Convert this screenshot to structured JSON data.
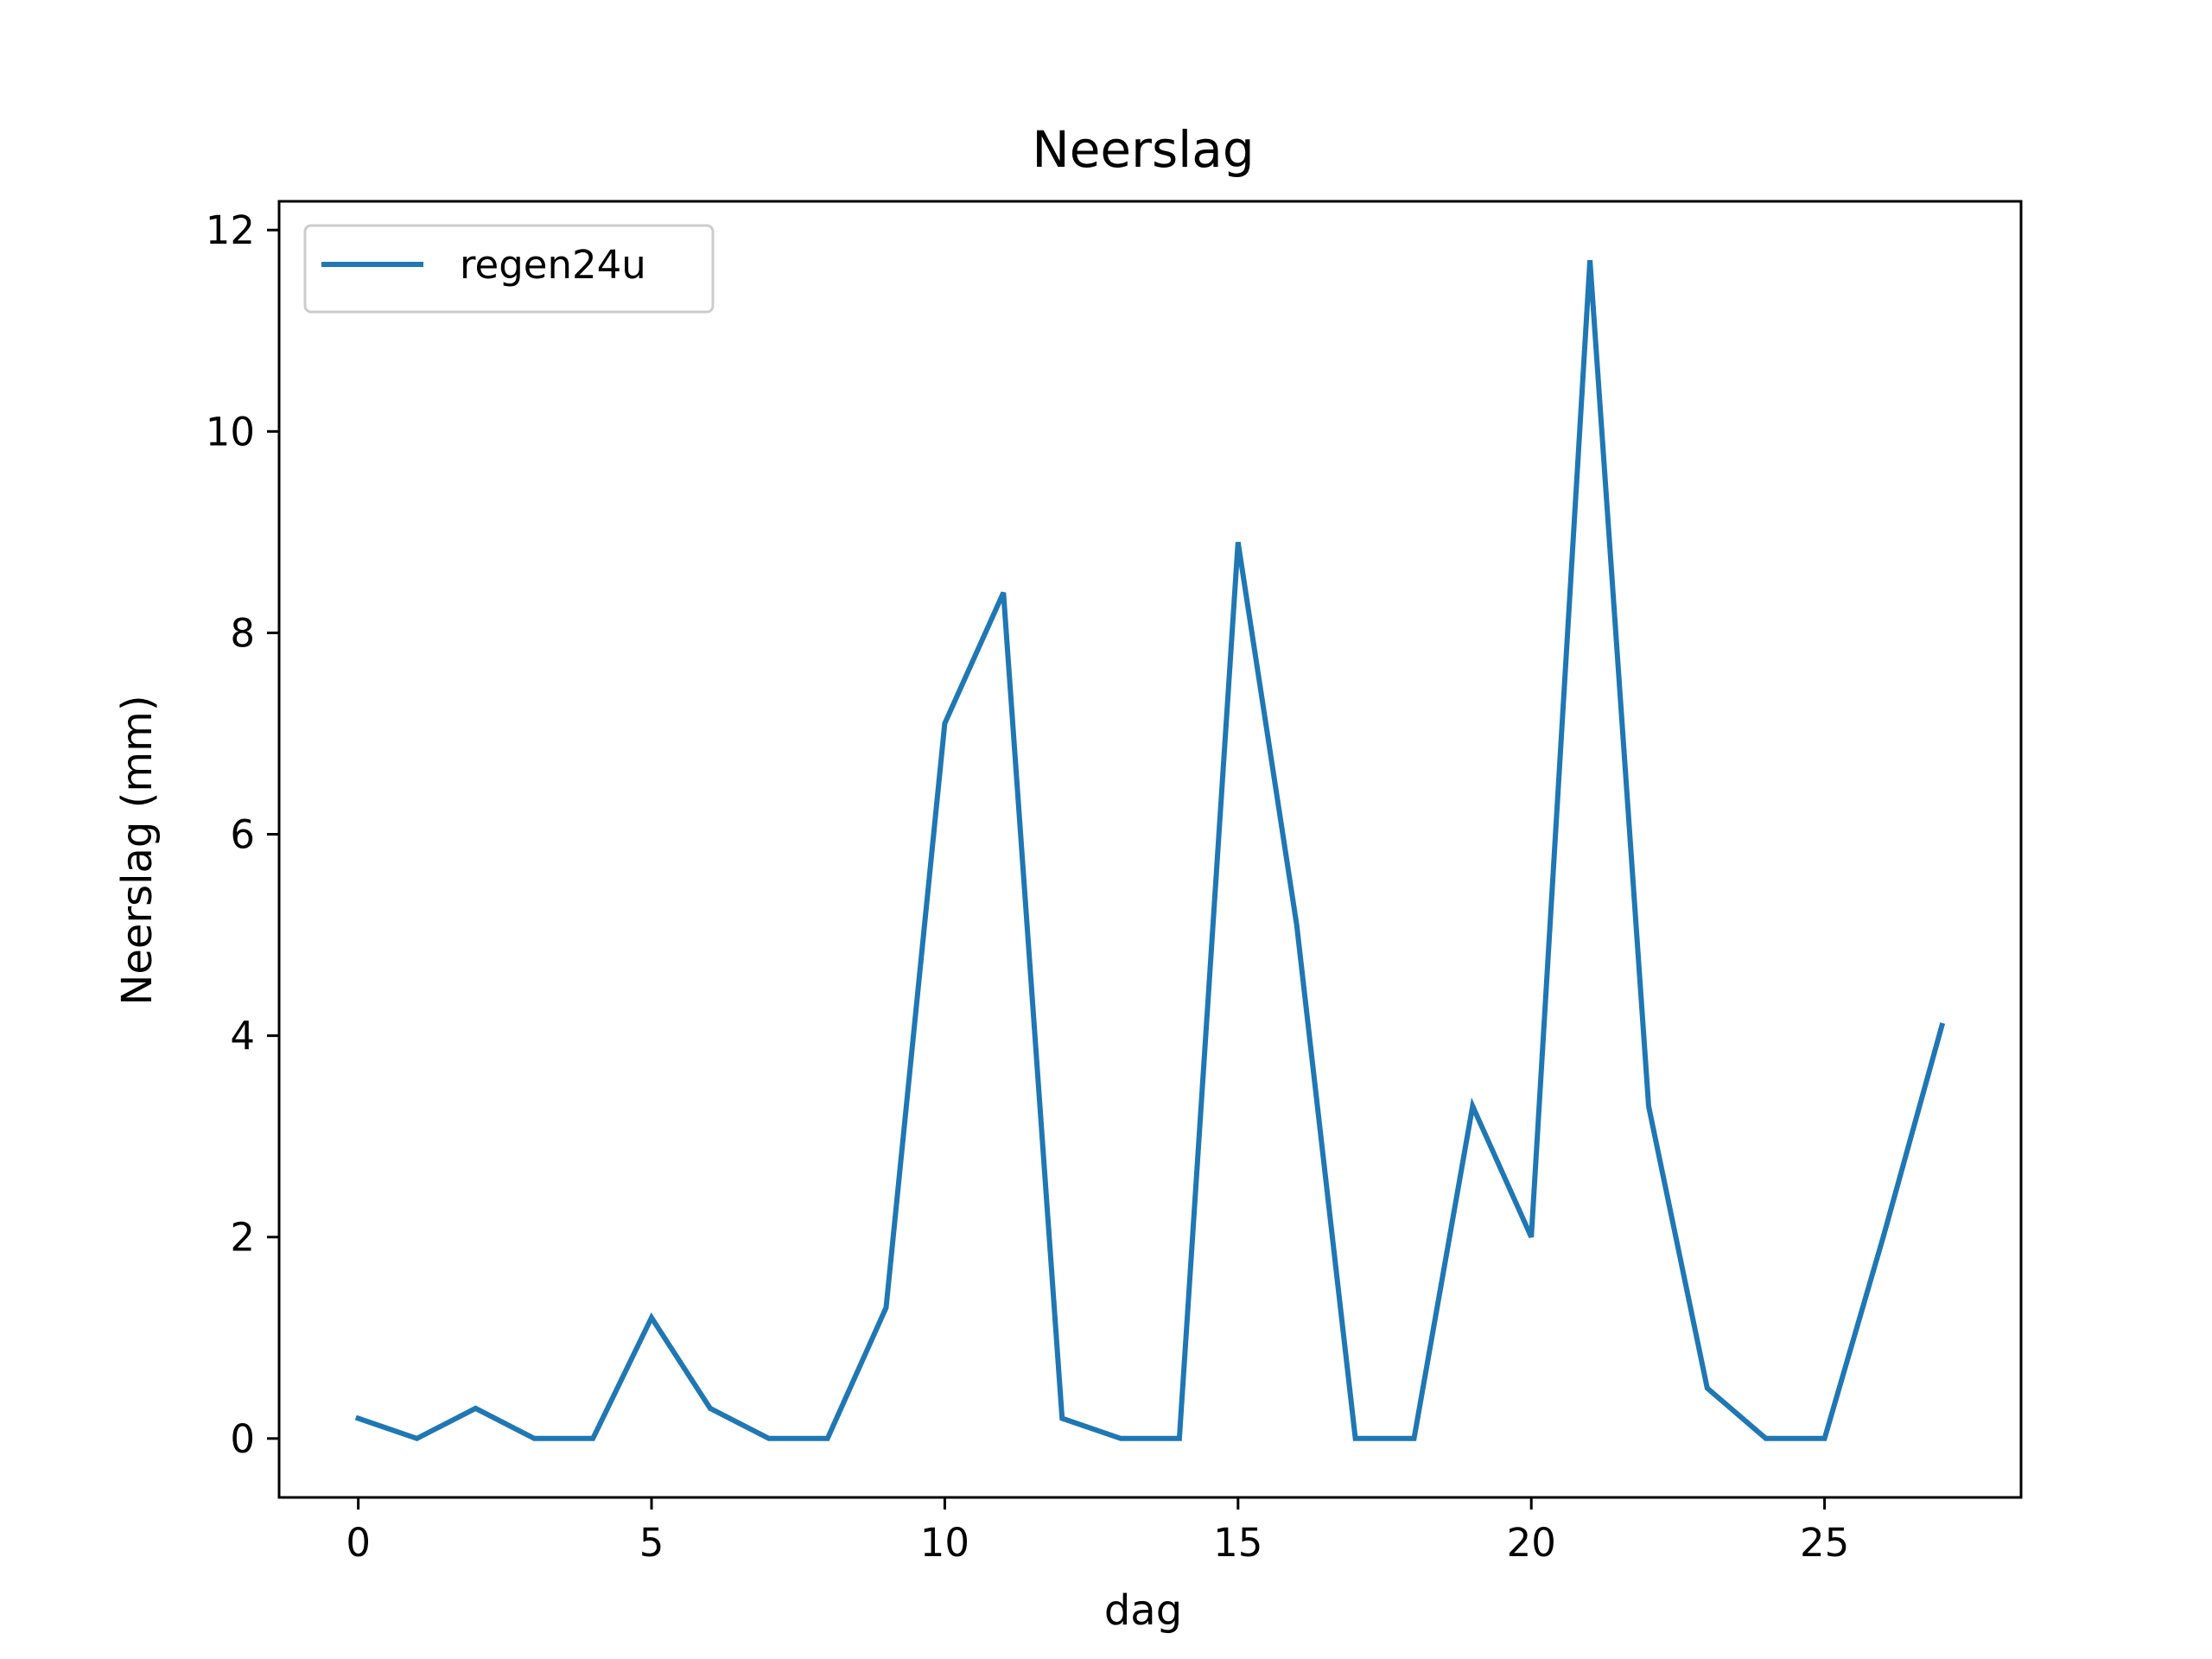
{
  "chart_data": {
    "type": "line",
    "title": "Neerslag",
    "xlabel": "dag",
    "ylabel": "Neerslag (mm)",
    "xlim": [
      -1.35,
      28.35
    ],
    "ylim": [
      -0.585,
      12.285
    ],
    "xticks": [
      0,
      5,
      10,
      15,
      20,
      25
    ],
    "yticks": [
      0,
      2,
      4,
      6,
      8,
      10,
      12
    ],
    "grid": false,
    "legend_position": "top-left",
    "series": [
      {
        "name": "regen24u",
        "color": "#1f77b4",
        "x": [
          0,
          1,
          2,
          3,
          4,
          5,
          6,
          7,
          8,
          9,
          10,
          11,
          12,
          13,
          14,
          15,
          16,
          17,
          18,
          19,
          20,
          21,
          22,
          23,
          24,
          25,
          26,
          27
        ],
        "y": [
          0.2,
          0.0,
          0.3,
          0.0,
          0.0,
          1.2,
          0.3,
          0.0,
          0.0,
          1.3,
          7.1,
          8.4,
          0.2,
          0.0,
          0.0,
          8.9,
          5.1,
          0.0,
          0.0,
          3.3,
          2.0,
          11.7,
          3.3,
          0.5,
          0.0,
          0.0,
          2.0,
          4.1
        ]
      }
    ]
  }
}
